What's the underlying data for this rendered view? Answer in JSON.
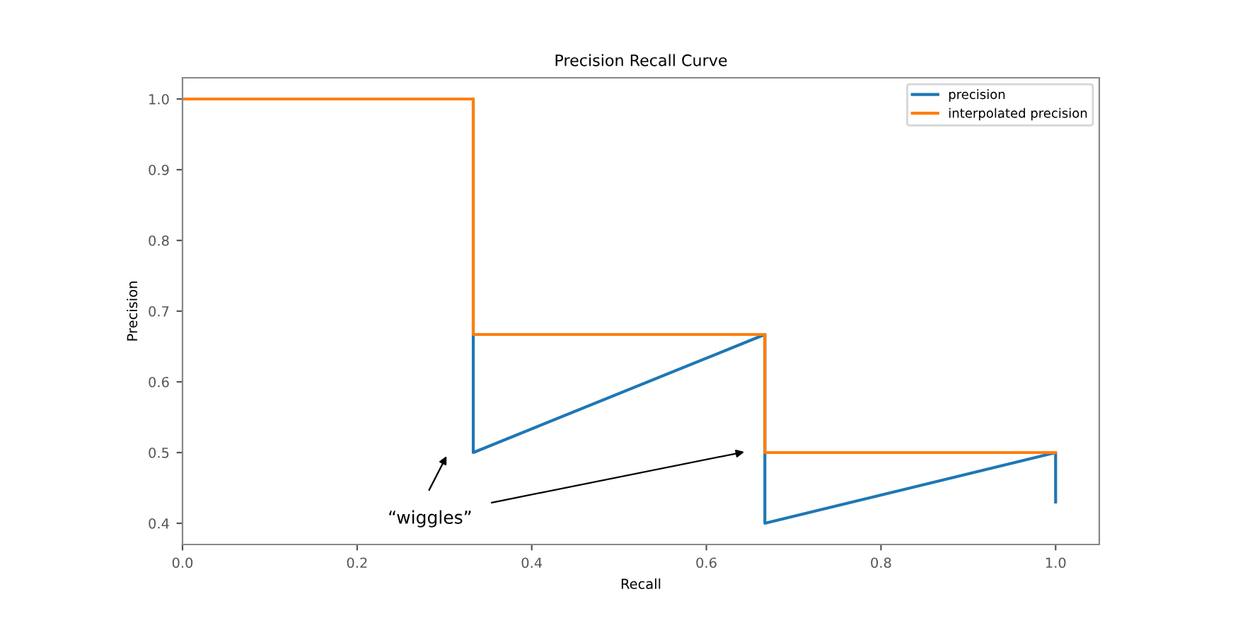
{
  "chart_data": {
    "type": "line",
    "title": "Precision Recall Curve",
    "xlabel": "Recall",
    "ylabel": "Precision",
    "xlim": [
      0.0,
      1.05
    ],
    "xticks": [
      {
        "value": 0.0,
        "label": "0.0"
      },
      0.2,
      0.4,
      0.6,
      0.8,
      {
        "value": 1.0,
        "label": "1.0"
      }
    ],
    "ylim": [
      0.37,
      1.03
    ],
    "yticks": [
      0.4,
      0.5,
      0.6,
      0.7,
      0.8,
      0.9,
      {
        "value": 1.0,
        "label": "1.0"
      }
    ],
    "grid": false,
    "legend": "top right",
    "line_style": "solid",
    "series": [
      {
        "name": "precision",
        "color": "#1f77b4",
        "x": [
          0.0,
          0.333,
          0.333,
          0.667,
          0.667,
          1.0,
          1.0
        ],
        "values": [
          1.0,
          1.0,
          0.5,
          0.667,
          0.4,
          0.5,
          0.43
        ]
      },
      {
        "name": "interpolated precision",
        "color": "#ff7f0e",
        "x": [
          0.0,
          0.333,
          0.333,
          0.667,
          0.667,
          1.0
        ],
        "values": [
          1.0,
          1.0,
          0.667,
          0.667,
          0.5,
          0.5
        ]
      }
    ],
    "annotations": [
      "“wiggles”"
    ]
  }
}
